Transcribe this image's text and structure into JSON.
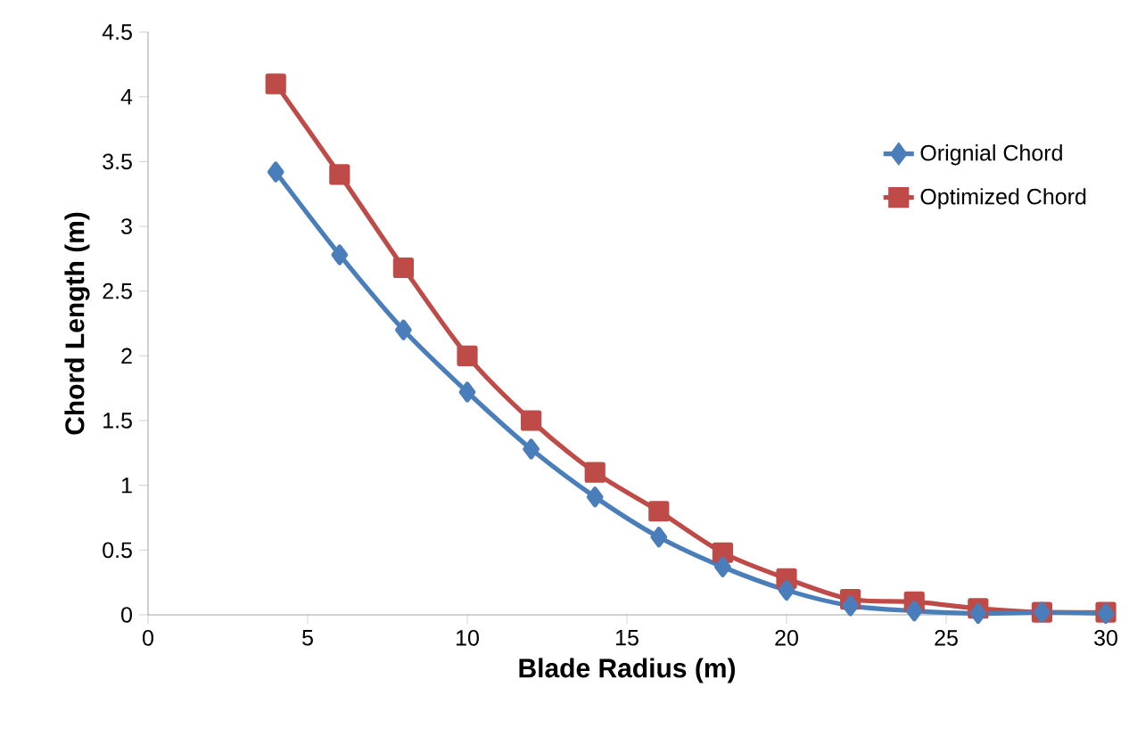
{
  "chart_data": {
    "type": "line",
    "xlabel": "Blade Radius (m)",
    "ylabel": "Chord Length (m)",
    "x": [
      4,
      6,
      8,
      10,
      12,
      14,
      16,
      18,
      20,
      22,
      24,
      26,
      28,
      30
    ],
    "series": [
      {
        "name": "Orignial Chord",
        "color": "#4a7ebb",
        "marker": "diamond",
        "values": [
          3.42,
          2.78,
          2.2,
          1.72,
          1.28,
          0.91,
          0.6,
          0.37,
          0.19,
          0.07,
          0.03,
          0.01,
          0.02,
          0.01
        ]
      },
      {
        "name": "Optimized Chord",
        "color": "#be4b48",
        "marker": "square",
        "values": [
          4.1,
          3.4,
          2.68,
          2.0,
          1.5,
          1.1,
          0.8,
          0.48,
          0.28,
          0.12,
          0.1,
          0.05,
          0.02,
          0.02
        ]
      }
    ],
    "xlim": [
      0,
      30
    ],
    "xticks": [
      0,
      5,
      10,
      15,
      20,
      25,
      30
    ],
    "ylim": [
      0,
      4.5
    ],
    "yticks": [
      0,
      0.5,
      1,
      1.5,
      2,
      2.5,
      3,
      3.5,
      4,
      4.5
    ],
    "grid": false,
    "legend": "top right",
    "line_style": "solid"
  }
}
